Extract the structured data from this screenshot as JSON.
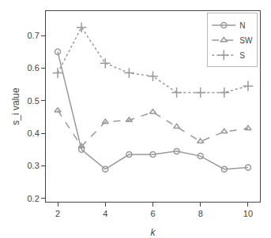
{
  "chart_data": {
    "type": "line",
    "x": [
      2,
      3,
      4,
      5,
      6,
      7,
      8,
      9,
      10
    ],
    "series": [
      {
        "name": "N",
        "color": "#999999",
        "marker": "circle",
        "line_style": "solid",
        "values": [
          0.65,
          0.35,
          0.29,
          0.335,
          0.335,
          0.345,
          0.33,
          0.29,
          0.295
        ]
      },
      {
        "name": "SW",
        "color": "#999999",
        "marker": "triangle",
        "line_style": "dashed",
        "values": [
          0.47,
          0.36,
          0.435,
          0.44,
          0.465,
          0.42,
          0.375,
          0.405,
          0.415
        ]
      },
      {
        "name": "S",
        "color": "#999999",
        "marker": "plus",
        "line_style": "dotted",
        "values": [
          0.585,
          0.725,
          0.615,
          0.585,
          0.575,
          0.525,
          0.525,
          0.525,
          0.545
        ]
      }
    ],
    "xlabel": "k",
    "ylabel": "s_i value",
    "xlim": [
      1.5,
      10.5
    ],
    "xticks": [
      2,
      4,
      6,
      8,
      10
    ],
    "ylim": [
      0.19,
      0.775
    ],
    "yticks": [
      0.2,
      0.3,
      0.4,
      0.5,
      0.6,
      0.7
    ],
    "grid": false,
    "legend": "upper right"
  }
}
